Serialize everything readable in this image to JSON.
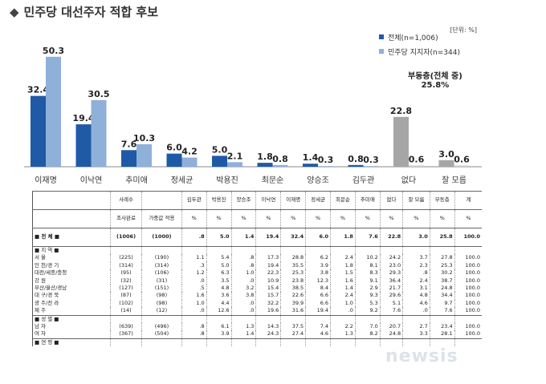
{
  "title": "민주당 대선주자 적합 후보",
  "unit": "[단위: %]",
  "undecided_label": "부동층(전체 중)",
  "undecided_value": "25.8%",
  "watermark": "newsis",
  "chart_data": {
    "type": "bar",
    "title": "민주당 대선주자 적합 후보",
    "categories": [
      "이재명",
      "이낙연",
      "추미애",
      "정세균",
      "박용진",
      "최문순",
      "양승조",
      "김두관",
      "없다",
      "잘 모름"
    ],
    "series": [
      {
        "name": "전체(n=1,006)",
        "values": [
          32.4,
          19.4,
          7.6,
          6.0,
          5.0,
          1.8,
          1.4,
          0.8,
          22.8,
          3.0
        ]
      },
      {
        "name": "민주당 지지자(n=344)",
        "values": [
          50.3,
          30.5,
          10.3,
          4.2,
          2.1,
          0.8,
          0.3,
          0.3,
          0.6,
          0.6
        ]
      }
    ],
    "ylim": [
      0,
      55
    ],
    "colors": {
      "all": "#1f5aa6",
      "supporters": "#8fb0d9",
      "none_all": "#a6a6a6",
      "none_sup": "#d0d0d0"
    },
    "legend_position": "top-right",
    "grid": false
  },
  "table": {
    "columns": [
      "사례수",
      "",
      "김두관",
      "박용진",
      "양승조",
      "이낙연",
      "이재명",
      "정세균",
      "최문순",
      "추미애",
      "없다",
      "잘 모름",
      "부동층",
      "계"
    ],
    "subheader": [
      "조사완료",
      "가중값 적용",
      "%",
      "%",
      "%",
      "%",
      "%",
      "%",
      "%",
      "%",
      "%",
      "%",
      "%",
      "%"
    ],
    "rows": [
      {
        "label": "■ 전 체 ■",
        "cells": [
          "(1006)",
          "(1000)",
          ".8",
          "5.0",
          "1.4",
          "19.4",
          "32.4",
          "6.0",
          "1.8",
          "7.6",
          "22.8",
          "3.0",
          "25.8",
          "100.0"
        ],
        "kind": "total"
      },
      {
        "label": "■ 지 역 ■",
        "cells": [
          "",
          "",
          "",
          "",
          "",
          "",
          "",
          "",
          "",
          "",
          "",
          "",
          "",
          ""
        ],
        "kind": "sec"
      },
      {
        "label": "서 울",
        "cells": [
          "(225)",
          "(190)",
          "1.1",
          "5.4",
          ".8",
          "17.3",
          "28.8",
          "6.2",
          "2.4",
          "10.2",
          "24.2",
          "3.7",
          "27.8",
          "100.0"
        ]
      },
      {
        "label": "인 천/경 기",
        "cells": [
          "(314)",
          "(314)",
          ".3",
          "5.0",
          ".8",
          "19.4",
          "35.5",
          "3.9",
          "1.8",
          "8.1",
          "23.0",
          "2.3",
          "25.3",
          "100.0"
        ]
      },
      {
        "label": "대전/세종/충청",
        "cells": [
          "(95)",
          "(106)",
          "1.2",
          "6.3",
          "1.0",
          "22.3",
          "25.3",
          "3.8",
          "1.5",
          "8.3",
          "29.3",
          ".8",
          "30.2",
          "100.0"
        ]
      },
      {
        "label": "강 원",
        "cells": [
          "(32)",
          "(31)",
          ".0",
          "3.5",
          ".0",
          "10.9",
          "23.8",
          "12.3",
          "1.6",
          "9.1",
          "36.4",
          "2.4",
          "38.7",
          "100.0"
        ]
      },
      {
        "label": "부산/울산/경남",
        "cells": [
          "(127)",
          "(151)",
          ".5",
          "4.8",
          "3.2",
          "15.4",
          "38.5",
          "8.4",
          "1.4",
          "2.9",
          "21.7",
          "3.1",
          "24.8",
          "100.0"
        ]
      },
      {
        "label": "대 구/경 북",
        "cells": [
          "(87)",
          "(98)",
          "1.6",
          "3.6",
          "3.8",
          "15.7",
          "22.6",
          "6.6",
          "2.4",
          "9.3",
          "29.6",
          "4.8",
          "34.4",
          "100.0"
        ]
      },
      {
        "label": "광 주/전 라",
        "cells": [
          "(102)",
          "(98)",
          "1.0",
          "4.4",
          ".0",
          "32.2",
          "39.9",
          "6.6",
          "1.0",
          "5.3",
          "5.1",
          "4.6",
          "9.7",
          "100.0"
        ]
      },
      {
        "label": "제 주",
        "cells": [
          "(14)",
          "(12)",
          ".0",
          "12.6",
          ".0",
          "19.6",
          "31.6",
          "19.4",
          ".0",
          "9.2",
          "7.6",
          ".0",
          "7.6",
          "100.0"
        ]
      },
      {
        "label": "■ 성 별 ■",
        "cells": [
          "",
          "",
          "",
          "",
          "",
          "",
          "",
          "",
          "",
          "",
          "",
          "",
          "",
          ""
        ],
        "kind": "sec"
      },
      {
        "label": "남 자",
        "cells": [
          "(639)",
          "(496)",
          ".8",
          "6.1",
          "1.3",
          "14.3",
          "37.5",
          "7.4",
          "2.2",
          "7.0",
          "20.7",
          "2.7",
          "23.4",
          "100.0"
        ]
      },
      {
        "label": "여 자",
        "cells": [
          "(367)",
          "(504)",
          ".8",
          "3.9",
          "1.4",
          "24.3",
          "27.4",
          "4.6",
          "1.3",
          "8.2",
          "24.8",
          "3.3",
          "28.1",
          "100.0"
        ]
      },
      {
        "label": "■ 연 령 ■",
        "cells": [
          "",
          "",
          "",
          "",
          "",
          "",
          "",
          "",
          "",
          "",
          "",
          "",
          "",
          ""
        ],
        "kind": "sec"
      }
    ]
  }
}
